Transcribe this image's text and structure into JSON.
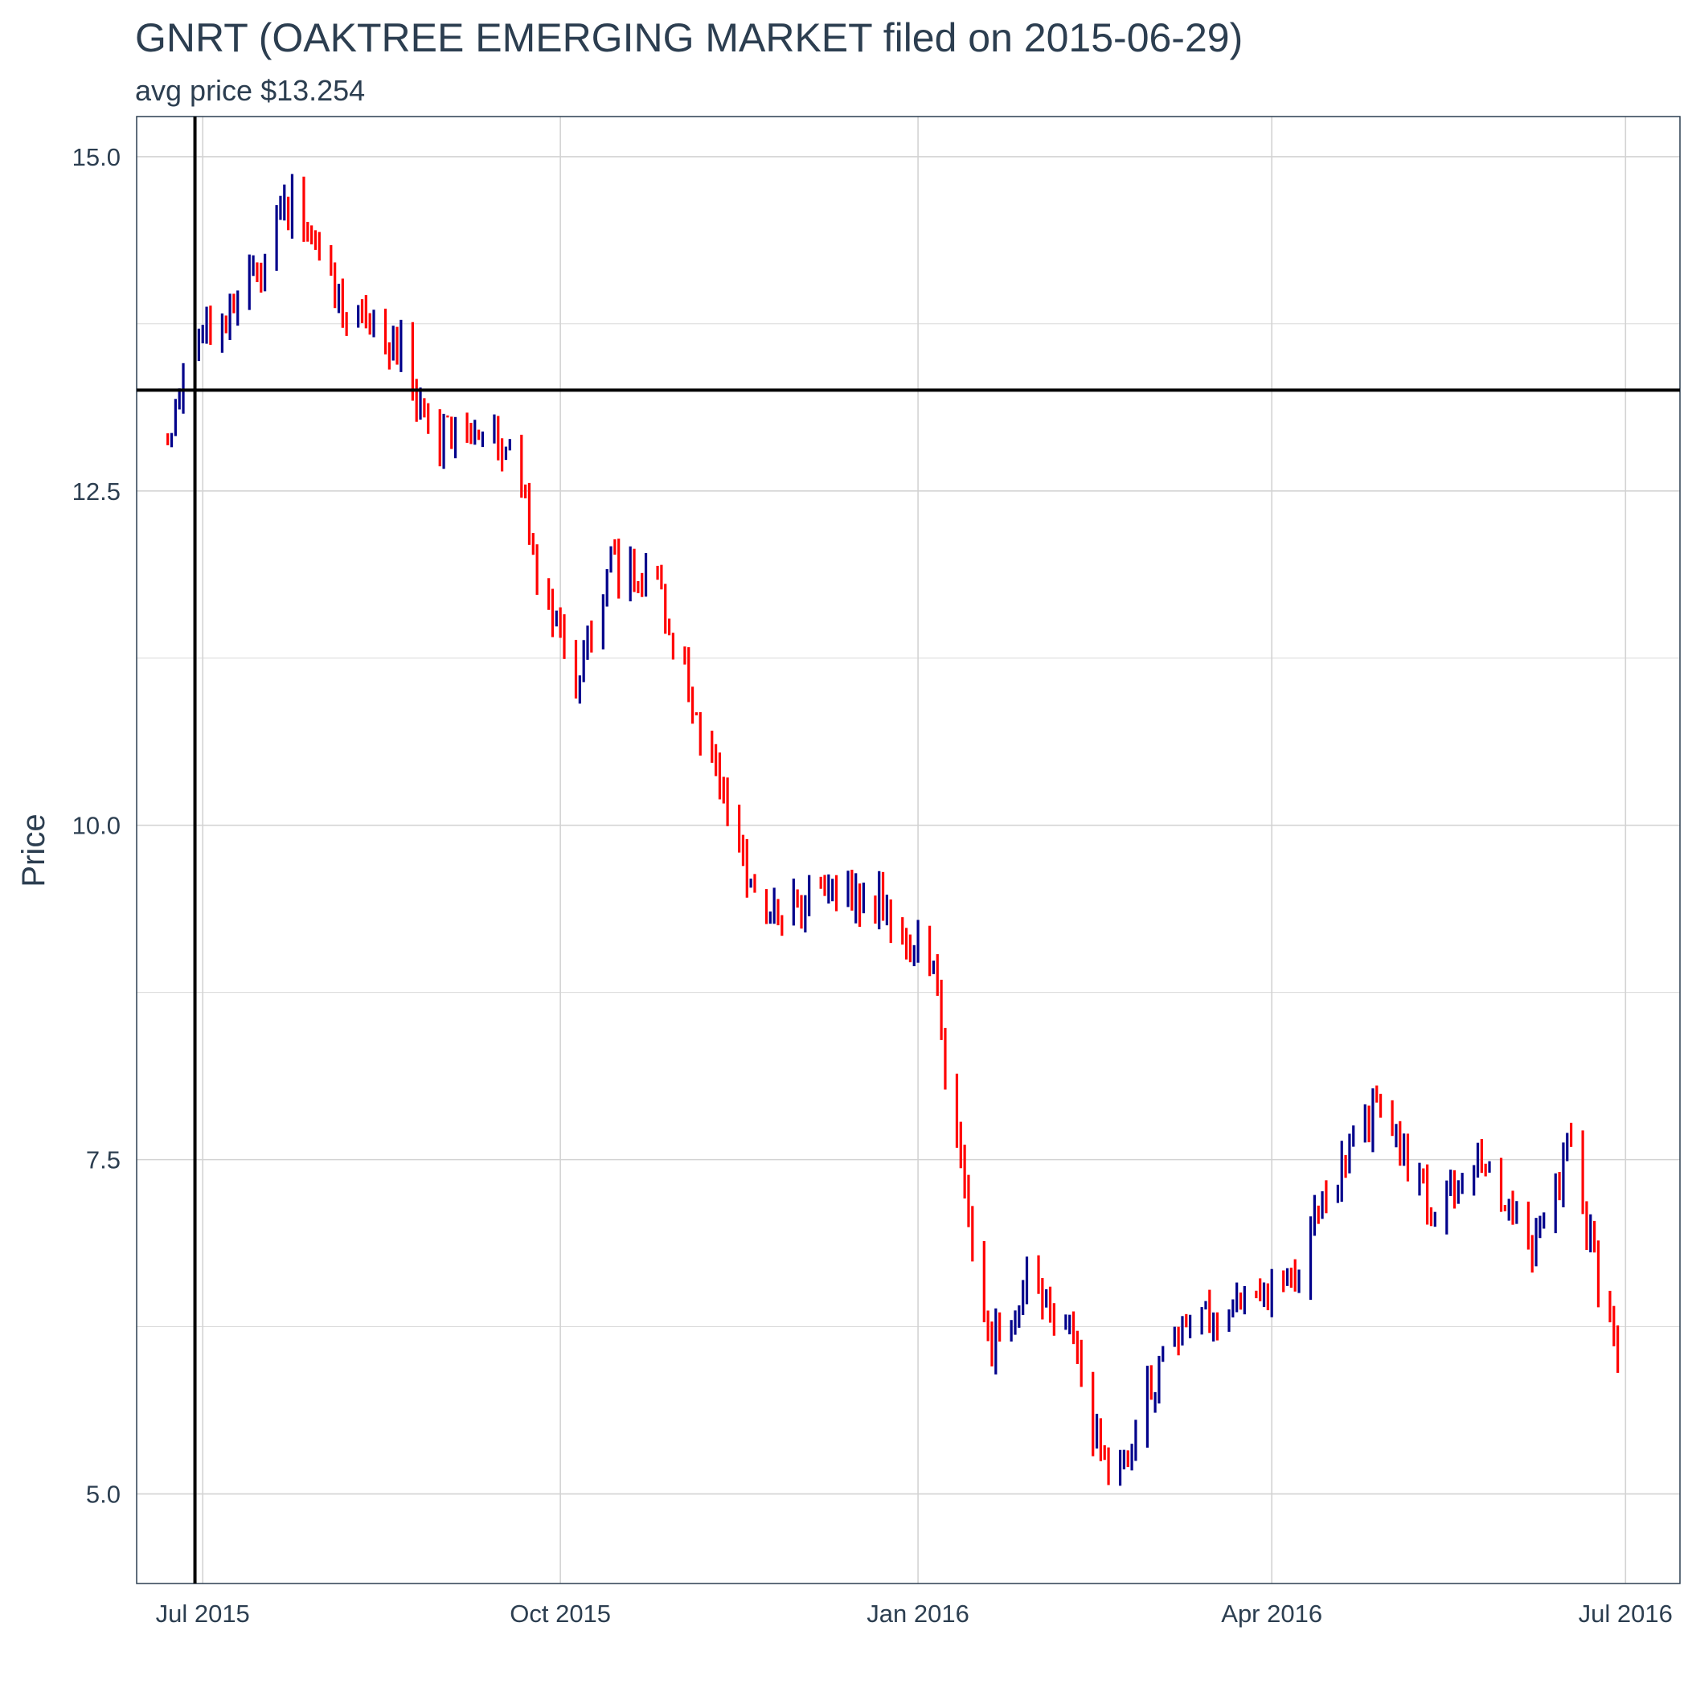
{
  "chart_data": {
    "type": "bar",
    "subtype": "ohlc",
    "title": "GNRT (OAKTREE EMERGING MARKET filed on 2015-06-29)",
    "subtitle": "avg price $13.254",
    "ylabel": "Price",
    "xlabel": "",
    "xlim": [
      "2015-06-14",
      "2016-07-15"
    ],
    "ylim": [
      4.33,
      15.3
    ],
    "y_ticks": [
      5.0,
      7.5,
      10.0,
      12.5,
      15.0
    ],
    "y_tick_labels": [
      "5.0",
      "7.5",
      "10.0",
      "12.5",
      "15.0"
    ],
    "x_ticks": [
      "2015-07-01",
      "2015-10-01",
      "2016-01-01",
      "2016-04-01",
      "2016-07-01"
    ],
    "x_tick_labels": [
      "Jul 2015",
      "Oct 2015",
      "Jan 2016",
      "Apr 2016",
      "Jul 2016"
    ],
    "grid": true,
    "legend": "none",
    "reference_lines": {
      "vertical_date": "2015-06-29",
      "horizontal_price": 13.254
    },
    "colors": {
      "up": "#00008b",
      "down": "#ff0000",
      "reference": "#000000",
      "grid": "#d3d3d3",
      "text": "#2c3e50"
    },
    "anchor_points": [
      {
        "date": "2015-06-22",
        "price": 12.9
      },
      {
        "date": "2015-06-29",
        "price": 13.7
      },
      {
        "date": "2015-07-10",
        "price": 13.8
      },
      {
        "date": "2015-07-24",
        "price": 14.7
      },
      {
        "date": "2015-08-07",
        "price": 13.8
      },
      {
        "date": "2015-08-21",
        "price": 13.6
      },
      {
        "date": "2015-08-28",
        "price": 12.9
      },
      {
        "date": "2015-09-11",
        "price": 12.9
      },
      {
        "date": "2015-09-18",
        "price": 12.9
      },
      {
        "date": "2015-09-25",
        "price": 12.0
      },
      {
        "date": "2015-10-05",
        "price": 11.1
      },
      {
        "date": "2015-10-14",
        "price": 11.9
      },
      {
        "date": "2015-10-26",
        "price": 11.8
      },
      {
        "date": "2015-11-05",
        "price": 10.8
      },
      {
        "date": "2015-11-19",
        "price": 9.6
      },
      {
        "date": "2015-11-25",
        "price": 9.3
      },
      {
        "date": "2015-12-10",
        "price": 9.5
      },
      {
        "date": "2015-12-22",
        "price": 9.4
      },
      {
        "date": "2016-01-04",
        "price": 9.0
      },
      {
        "date": "2016-01-13",
        "price": 7.3
      },
      {
        "date": "2016-01-19",
        "price": 6.1
      },
      {
        "date": "2016-01-29",
        "price": 6.6
      },
      {
        "date": "2016-02-09",
        "price": 6.3
      },
      {
        "date": "2016-02-19",
        "price": 5.0
      },
      {
        "date": "2016-03-02",
        "price": 5.9
      },
      {
        "date": "2016-03-11",
        "price": 6.3
      },
      {
        "date": "2016-03-25",
        "price": 6.4
      },
      {
        "date": "2016-04-08",
        "price": 6.7
      },
      {
        "date": "2016-04-22",
        "price": 7.7
      },
      {
        "date": "2016-04-29",
        "price": 7.9
      },
      {
        "date": "2016-05-13",
        "price": 7.0
      },
      {
        "date": "2016-05-24",
        "price": 7.6
      },
      {
        "date": "2016-06-07",
        "price": 6.8
      },
      {
        "date": "2016-06-17",
        "price": 7.6
      },
      {
        "date": "2016-06-24",
        "price": 6.6
      },
      {
        "date": "2016-06-29",
        "price": 6.0
      }
    ]
  }
}
